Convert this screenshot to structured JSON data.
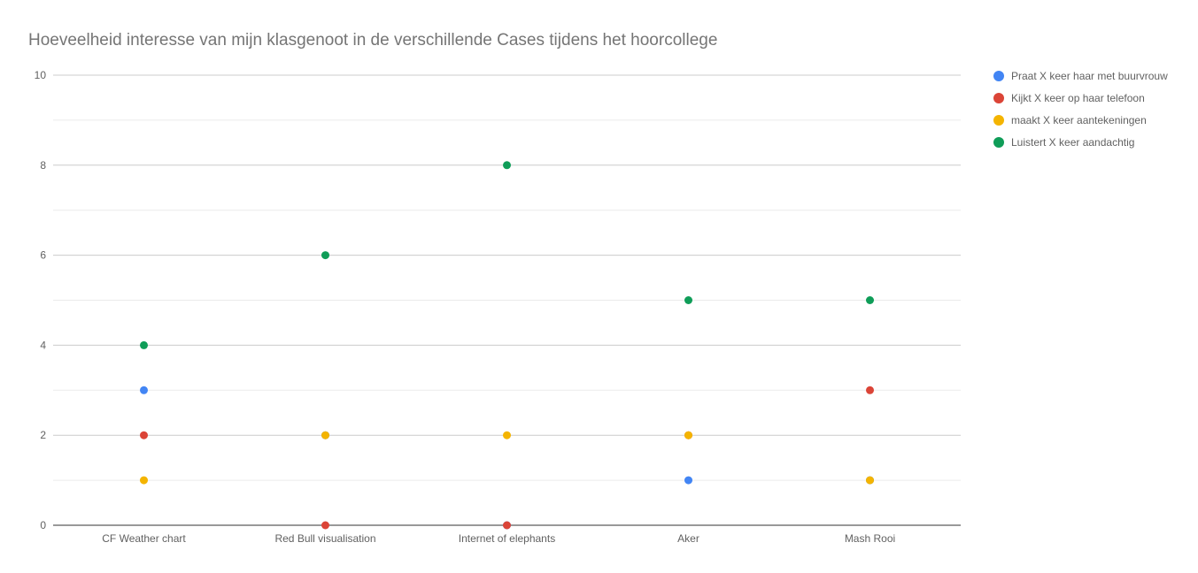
{
  "chart_data": {
    "type": "scatter",
    "title": "Hoeveelheid interesse van mijn klasgenoot in de verschillende Cases tijdens het hoorcollege",
    "xlabel": "",
    "ylabel": "",
    "categories": [
      "CF Weather chart",
      "Red Bull visualisation",
      "Internet of elephants",
      "Aker",
      "Mash Rooi"
    ],
    "ylim": [
      0,
      10
    ],
    "yticks": [
      "0",
      "2",
      "4",
      "6",
      "8",
      "10"
    ],
    "grid": true,
    "legend_position": "right",
    "series": [
      {
        "name": "Praat X keer haar met buurvrouw",
        "color": "#4285f4",
        "values": [
          3,
          2,
          0,
          1,
          1
        ]
      },
      {
        "name": "Kijkt X keer op haar telefoon",
        "color": "#db4437",
        "values": [
          2,
          0,
          0,
          2,
          3
        ]
      },
      {
        "name": "maakt X keer aantekeningen",
        "color": "#f4b400",
        "values": [
          1,
          2,
          2,
          2,
          1
        ]
      },
      {
        "name": "Luistert X keer aandachtig",
        "color": "#0f9d58",
        "values": [
          4,
          6,
          8,
          5,
          5
        ]
      }
    ]
  }
}
